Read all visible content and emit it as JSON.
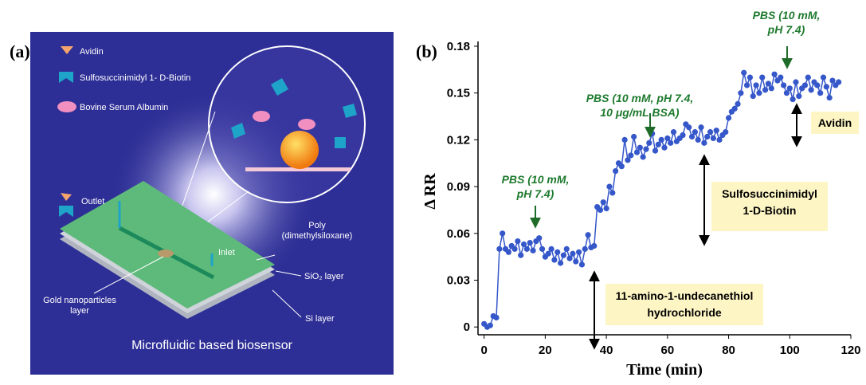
{
  "panel_a": {
    "label": "(a)",
    "legend": [
      "Avidin",
      "Sulfosuccinimidyl 1- D-Biotin",
      "Bovine Serum Albumin"
    ],
    "outlet": "Outlet",
    "inlet": "Inlet",
    "pdms": [
      "Poly",
      "(dimethylsiloxane)"
    ],
    "sio2": "SiO₂ layer",
    "si": "Si layer",
    "gold": [
      "Gold nanoparticles",
      "layer"
    ],
    "caption": "Microfluidic based biosensor"
  },
  "chart_data": {
    "type": "line",
    "label": "(b)",
    "x_label": "Time (min)",
    "y_label": "Δ RR",
    "color": "#3557c9",
    "xlim": [
      -2,
      120
    ],
    "xticks": [
      0,
      20,
      40,
      60,
      80,
      100,
      120
    ],
    "ylim": [
      -0.005,
      0.18
    ],
    "yticks": [
      0,
      0.03,
      0.06,
      0.09,
      0.12,
      0.15,
      0.18
    ],
    "x": [
      0,
      1,
      2,
      3,
      4,
      5,
      6,
      7,
      8,
      9,
      10,
      11,
      12,
      13,
      14,
      15,
      16,
      17,
      18,
      19,
      20,
      21,
      22,
      23,
      24,
      25,
      26,
      27,
      28,
      29,
      30,
      31,
      32,
      33,
      34,
      35,
      36,
      37,
      38,
      39,
      40,
      41,
      42,
      43,
      44,
      45,
      46,
      47,
      48,
      49,
      50,
      51,
      52,
      53,
      54,
      55,
      56,
      57,
      58,
      59,
      60,
      61,
      62,
      63,
      64,
      65,
      66,
      67,
      68,
      69,
      70,
      71,
      72,
      73,
      74,
      75,
      76,
      77,
      78,
      79,
      80,
      81,
      82,
      83,
      84,
      85,
      86,
      87,
      88,
      89,
      90,
      91,
      92,
      93,
      94,
      95,
      96,
      97,
      98,
      99,
      100,
      101,
      102,
      103,
      104,
      105,
      106,
      107,
      108,
      109,
      110,
      111,
      112,
      113,
      114,
      115,
      116
    ],
    "values": [
      0.002,
      0.0,
      0.001,
      0.007,
      0.006,
      0.05,
      0.06,
      0.05,
      0.048,
      0.052,
      0.05,
      0.055,
      0.046,
      0.053,
      0.05,
      0.054,
      0.049,
      0.055,
      0.057,
      0.05,
      0.045,
      0.047,
      0.05,
      0.043,
      0.048,
      0.041,
      0.046,
      0.05,
      0.044,
      0.047,
      0.042,
      0.048,
      0.04,
      0.05,
      0.059,
      0.051,
      0.052,
      0.077,
      0.075,
      0.08,
      0.076,
      0.09,
      0.086,
      0.1,
      0.105,
      0.103,
      0.12,
      0.107,
      0.11,
      0.122,
      0.112,
      0.115,
      0.109,
      0.114,
      0.118,
      0.124,
      0.113,
      0.117,
      0.12,
      0.115,
      0.121,
      0.118,
      0.125,
      0.119,
      0.121,
      0.123,
      0.13,
      0.128,
      0.122,
      0.125,
      0.12,
      0.128,
      0.118,
      0.122,
      0.125,
      0.121,
      0.126,
      0.12,
      0.123,
      0.125,
      0.134,
      0.138,
      0.14,
      0.143,
      0.15,
      0.163,
      0.155,
      0.16,
      0.148,
      0.155,
      0.15,
      0.16,
      0.152,
      0.156,
      0.153,
      0.162,
      0.158,
      0.16,
      0.155,
      0.15,
      0.153,
      0.146,
      0.157,
      0.148,
      0.153,
      0.155,
      0.16,
      0.152,
      0.157,
      0.155,
      0.15,
      0.16,
      0.154,
      0.147,
      0.158,
      0.155,
      0.157
    ],
    "annotations": [
      [
        "PBS (10 mM,",
        "pH 7.4)"
      ],
      [
        "PBS (10 mM, pH 7.4,",
        "10 μg/mL BSA)"
      ],
      [
        "PBS (10 mM,",
        "pH 7.4)"
      ]
    ],
    "boxes": [
      [
        "11-amino-1-undecanethiol",
        "hydrochloride"
      ],
      [
        "Sulfosuccinimidyl",
        "1-D-Biotin"
      ],
      [
        "Avidin"
      ]
    ]
  }
}
